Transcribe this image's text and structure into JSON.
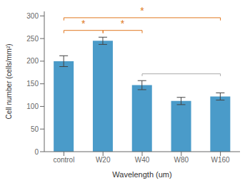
{
  "chart_data": {
    "type": "bar",
    "categories": [
      "control",
      "W20",
      "W40",
      "W80",
      "W160"
    ],
    "values": [
      200,
      245,
      147,
      112,
      122
    ],
    "errors": [
      12,
      8,
      10,
      8,
      8
    ],
    "color": "#4a9bc9",
    "xlabel": "Wavelength (um)",
    "ylabel": "Cell number (cells/mm²)",
    "ylim": [
      0,
      310
    ],
    "yticks": [
      0,
      50,
      100,
      150,
      200,
      250,
      300
    ],
    "annotations": [
      {
        "text": "*",
        "x1": "control",
        "x2": "W20",
        "y": 268,
        "color": "#e07820"
      },
      {
        "text": "*",
        "x1": "W20",
        "x2": "W40",
        "y": 268,
        "color": "#e07820"
      },
      {
        "text": "*",
        "x1": "control",
        "x2": "W160",
        "y": 296,
        "color": "#e07820"
      },
      {
        "x1": "W40",
        "x2": "W160",
        "y": 172,
        "color": "#aaaaaa"
      }
    ]
  }
}
